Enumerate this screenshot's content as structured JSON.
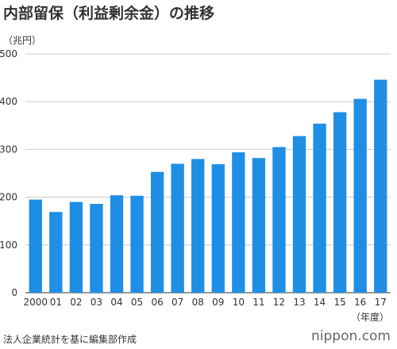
{
  "title": "内部留保（利益剰余金）の推移",
  "unit": "（兆円）",
  "source": "法人企業統計を基に編集部作成",
  "logo": {
    "text": "nippon.com",
    "dot_color": "#1f8fe5"
  },
  "chart_data": {
    "type": "bar",
    "title": "内部留保（利益剰余金）の推移",
    "ylabel": "（兆円）",
    "xlabel": "（年度）",
    "categories": [
      "2000",
      "01",
      "02",
      "03",
      "04",
      "05",
      "06",
      "07",
      "08",
      "09",
      "10",
      "11",
      "12",
      "13",
      "14",
      "15",
      "16",
      "17"
    ],
    "values": [
      195,
      169,
      190,
      186,
      204,
      203,
      253,
      270,
      280,
      269,
      294,
      282,
      305,
      328,
      354,
      378,
      406,
      446
    ],
    "ylim": [
      0,
      500
    ],
    "yticks": [
      0,
      100,
      200,
      300,
      400,
      500
    ],
    "grid": true,
    "bar_color": "#1f8fe5"
  }
}
